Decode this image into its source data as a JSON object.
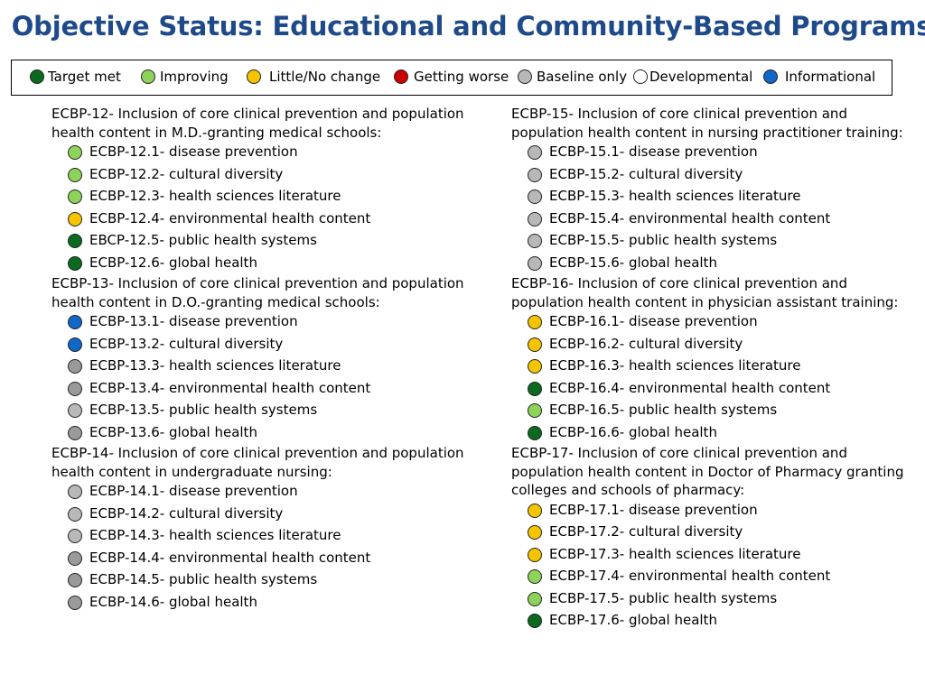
{
  "title": "Objective Status: Educational and Community-Based Programs",
  "legend": [
    {
      "label": "Target met",
      "color": "#0b6a1f"
    },
    {
      "label": "Improving",
      "color": "#8dd35a"
    },
    {
      "label": "Little/No change",
      "color": "#f7c400"
    },
    {
      "label": "Getting worse",
      "color": "#cc0000"
    },
    {
      "label": "Baseline only",
      "color": "#b8b8b8"
    },
    {
      "label": "Developmental",
      "color": "#ffffff"
    },
    {
      "label": "Informational",
      "color": "#1067c8"
    }
  ],
  "objectives": [
    {
      "heading": "ECBP-12- Inclusion of core clinical prevention and population health content in M.D.-granting medical schools:",
      "items": [
        {
          "label": "ECBP-12.1- disease prevention",
          "status": "improving"
        },
        {
          "label": "ECBP-12.2- cultural diversity",
          "status": "improving"
        },
        {
          "label": "ECBP-12.3- health sciences literature",
          "status": "improving"
        },
        {
          "label": "ECBP-12.4- environmental health content",
          "status": "little"
        },
        {
          "label": "EBCP-12.5- public health systems",
          "status": "target"
        },
        {
          "label": "ECBP-12.6- global health",
          "status": "target"
        }
      ]
    },
    {
      "heading": "ECBP-13- Inclusion of core clinical prevention and population health content in D.O.-granting medical schools:",
      "items": [
        {
          "label": "ECBP-13.1- disease prevention",
          "status": "informational"
        },
        {
          "label": "ECBP-13.2- cultural diversity",
          "status": "informational"
        },
        {
          "label": "ECBP-13.3- health sciences literature",
          "status": "baseline2"
        },
        {
          "label": "ECBP-13.4- environmental health content",
          "status": "baseline2"
        },
        {
          "label": "ECBP-13.5- public health systems",
          "status": "baseline"
        },
        {
          "label": "ECBP-13.6- global health",
          "status": "baseline2"
        }
      ]
    },
    {
      "heading": "ECBP-14- Inclusion of core clinical prevention and population health content in undergraduate nursing:",
      "items": [
        {
          "label": "ECBP-14.1- disease prevention",
          "status": "baseline"
        },
        {
          "label": "ECBP-14.2- cultural diversity",
          "status": "baseline"
        },
        {
          "label": "ECBP-14.3- health sciences literature",
          "status": "baseline"
        },
        {
          "label": "ECBP-14.4- environmental health content",
          "status": "baseline2"
        },
        {
          "label": "ECBP-14.5- public health systems",
          "status": "baseline2"
        },
        {
          "label": "ECBP-14.6- global health",
          "status": "baseline2"
        }
      ]
    },
    {
      "heading": "ECBP-15- Inclusion of core clinical prevention and population health content in nursing practitioner training:",
      "items": [
        {
          "label": "ECBP-15.1- disease prevention",
          "status": "baseline"
        },
        {
          "label": "ECBP-15.2- cultural diversity",
          "status": "baseline"
        },
        {
          "label": "ECBP-15.3- health sciences literature",
          "status": "baseline"
        },
        {
          "label": "ECBP-15.4- environmental health content",
          "status": "baseline"
        },
        {
          "label": "ECBP-15.5- public health systems",
          "status": "baseline"
        },
        {
          "label": "ECBP-15.6- global health",
          "status": "baseline"
        }
      ]
    },
    {
      "heading": "ECBP-16- Inclusion of core clinical prevention and population health content in physician assistant training:",
      "items": [
        {
          "label": "ECBP-16.1- disease prevention",
          "status": "little"
        },
        {
          "label": "ECBP-16.2- cultural diversity",
          "status": "little"
        },
        {
          "label": "ECBP-16.3- health sciences literature",
          "status": "little"
        },
        {
          "label": "ECBP-16.4- environmental health content",
          "status": "target"
        },
        {
          "label": "ECBP-16.5- public health systems",
          "status": "improving"
        },
        {
          "label": "ECBP-16.6- global health",
          "status": "target"
        }
      ]
    },
    {
      "heading": "ECBP-17- Inclusion of core clinical prevention and population health content in Doctor of Pharmacy granting colleges and schools of pharmacy:",
      "items": [
        {
          "label": "ECBP-17.1- disease prevention",
          "status": "little"
        },
        {
          "label": "ECBP-17.2- cultural diversity",
          "status": "little"
        },
        {
          "label": "ECBP-17.3- health sciences literature",
          "status": "little"
        },
        {
          "label": "ECBP-17.4- environmental health content",
          "status": "improving"
        },
        {
          "label": "ECBP-17.5- public health systems",
          "status": "improving"
        },
        {
          "label": "ECBP-17.6- global health",
          "status": "target"
        }
      ]
    }
  ]
}
